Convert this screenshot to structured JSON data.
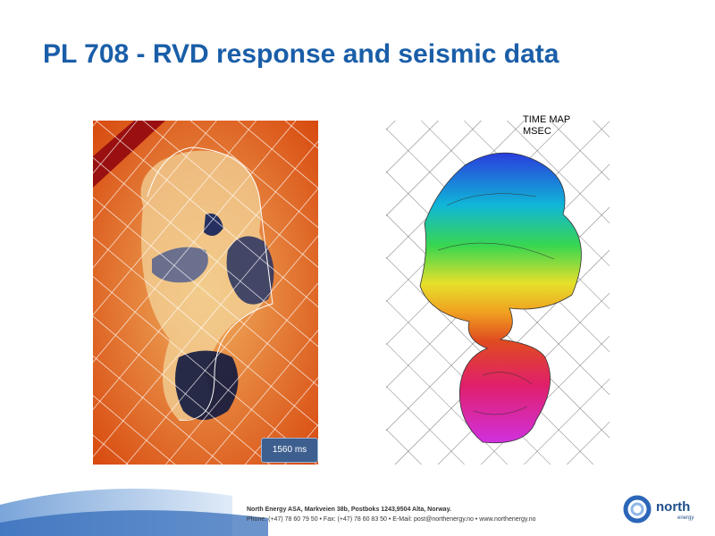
{
  "title": "PL 708 - RVD response and seismic data",
  "left_image": {
    "label": "1560 ms"
  },
  "right_image": {
    "label_lines": [
      "TIME MAP",
      "MSEC"
    ]
  },
  "footer": {
    "lines": [
      "North Energy ASA, Markveien 38b, Postboks 1243,9504 Alta, Norway.",
      "Phone: (+47) 78 60 79 50 • Fax: (+47) 78 60 83 50 • E-Mail: post@northenergy.no • www.northenergy.no"
    ]
  },
  "logo": {
    "name": "north",
    "sub": "energy"
  }
}
